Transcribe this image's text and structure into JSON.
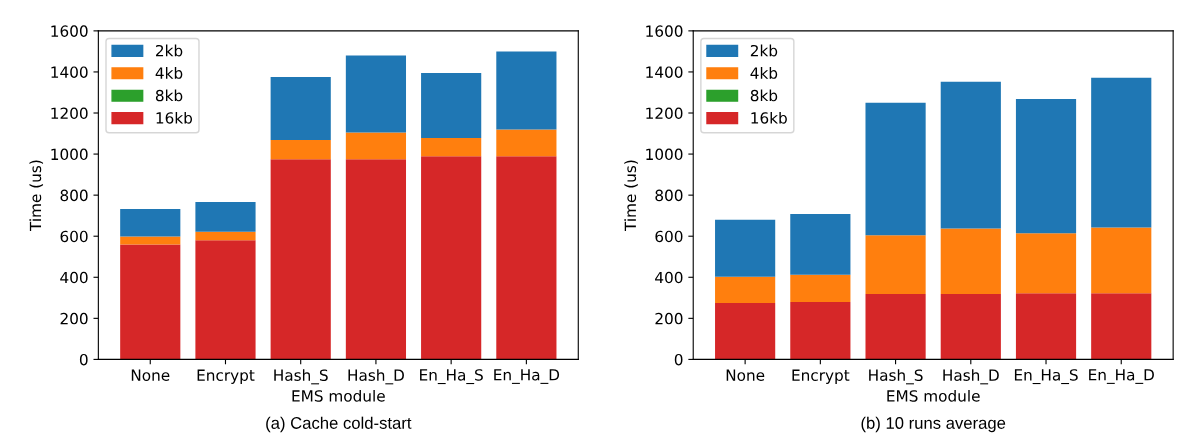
{
  "chart_data": [
    {
      "type": "bar",
      "stacked": true,
      "categories": [
        "None",
        "Encrypt",
        "Hash_S",
        "Hash_D",
        "En_Ha_S",
        "En_Ha_D"
      ],
      "xlabel": "EMS module",
      "ylabel": "Time (us)",
      "ylim": [
        0,
        1600
      ],
      "yticks": [
        0,
        200,
        400,
        600,
        800,
        1000,
        1200,
        1400,
        1600
      ],
      "legend": "top left",
      "grid": false,
      "annotations": [
        "(a) Cache cold-start"
      ],
      "series": [
        {
          "name": "16kb",
          "color": "#d62728",
          "values": [
            560,
            580,
            975,
            975,
            990,
            990
          ]
        },
        {
          "name": "8kb",
          "color": "#2ca02c",
          "values": [
            null,
            null,
            null,
            null,
            null,
            null
          ]
        },
        {
          "name": "4kb",
          "color": "#ff7f0e",
          "values": [
            38,
            42,
            93,
            130,
            88,
            130
          ]
        },
        {
          "name": "2kb",
          "color": "#1f77b4",
          "values": [
            134,
            144,
            307,
            375,
            317,
            380
          ]
        }
      ]
    },
    {
      "type": "bar",
      "stacked": true,
      "categories": [
        "None",
        "Encrypt",
        "Hash_S",
        "Hash_D",
        "En_Ha_S",
        "En_Ha_D"
      ],
      "xlabel": "EMS module",
      "ylabel": "Time (us)",
      "ylim": [
        0,
        1600
      ],
      "yticks": [
        0,
        200,
        400,
        600,
        800,
        1000,
        1200,
        1400,
        1600
      ],
      "legend": "top left",
      "grid": false,
      "annotations": [
        "(b) 10 runs average"
      ],
      "series": [
        {
          "name": "16kb",
          "color": "#d62728",
          "values": [
            275,
            280,
            318,
            318,
            322,
            322
          ]
        },
        {
          "name": "8kb",
          "color": "#2ca02c",
          "values": [
            null,
            null,
            null,
            null,
            null,
            null
          ]
        },
        {
          "name": "4kb",
          "color": "#ff7f0e",
          "values": [
            128,
            132,
            287,
            320,
            293,
            320
          ]
        },
        {
          "name": "2kb",
          "color": "#1f77b4",
          "values": [
            277,
            296,
            645,
            714,
            653,
            730
          ]
        }
      ]
    }
  ]
}
